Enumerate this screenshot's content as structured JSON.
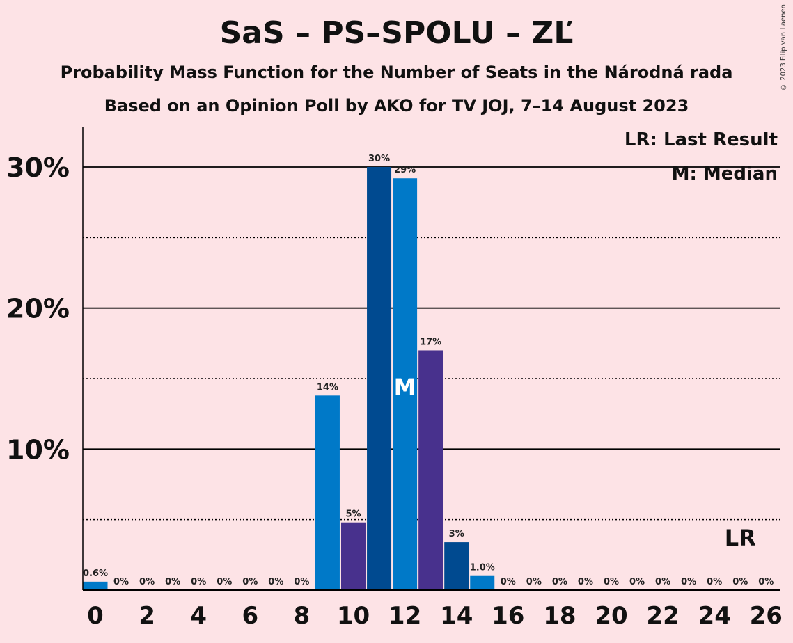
{
  "title": "SaS – PS–SPOLU – ZĽ",
  "subtitle1": "Probability Mass Function for the Number of Seats in the Národná rada",
  "subtitle2": "Based on an Opinion Poll by AKO for TV JOJ, 7–14 August 2023",
  "copyright": "© 2023 Filip van Laenen",
  "legend": {
    "last_result": "LR: Last Result",
    "median": "M: Median"
  },
  "markers": {
    "median_label": "M",
    "median_seat": 12,
    "last_result_label": "LR",
    "last_result_seat": 25
  },
  "colors": {
    "background": "#fde3e6",
    "sas": "#0079c8",
    "ps": "#48318d",
    "spolu": "#004a90"
  },
  "chart_data": {
    "type": "bar",
    "xlim": [
      0,
      26
    ],
    "ylim": [
      0,
      0.32
    ],
    "x_ticks": [
      0,
      2,
      4,
      6,
      8,
      10,
      12,
      14,
      16,
      18,
      20,
      22,
      24,
      26
    ],
    "y_ticks": [
      {
        "value": 0.1,
        "label": "10%"
      },
      {
        "value": 0.2,
        "label": "20%"
      },
      {
        "value": 0.3,
        "label": "30%"
      }
    ],
    "minor_y_gridlines": [
      0.05,
      0.15,
      0.25
    ],
    "bars": [
      {
        "seats": 0,
        "value": 0.006,
        "label": "0.6%",
        "color": "#0079c8"
      },
      {
        "seats": 1,
        "value": 0,
        "label": "0%",
        "color": "#0079c8"
      },
      {
        "seats": 2,
        "value": 0,
        "label": "0%",
        "color": "#0079c8"
      },
      {
        "seats": 3,
        "value": 0,
        "label": "0%",
        "color": "#0079c8"
      },
      {
        "seats": 4,
        "value": 0,
        "label": "0%",
        "color": "#0079c8"
      },
      {
        "seats": 5,
        "value": 0,
        "label": "0%",
        "color": "#0079c8"
      },
      {
        "seats": 6,
        "value": 0,
        "label": "0%",
        "color": "#0079c8"
      },
      {
        "seats": 7,
        "value": 0,
        "label": "0%",
        "color": "#0079c8"
      },
      {
        "seats": 8,
        "value": 0,
        "label": "0%",
        "color": "#0079c8"
      },
      {
        "seats": 9,
        "value": 0.138,
        "label": "14%",
        "color": "#0079c8"
      },
      {
        "seats": 10,
        "value": 0.048,
        "label": "5%",
        "color": "#48318d"
      },
      {
        "seats": 11,
        "value": 0.3,
        "label": "30%",
        "color": "#004a90"
      },
      {
        "seats": 12,
        "value": 0.292,
        "label": "29%",
        "color": "#0079c8"
      },
      {
        "seats": 13,
        "value": 0.17,
        "label": "17%",
        "color": "#48318d"
      },
      {
        "seats": 14,
        "value": 0.034,
        "label": "3%",
        "color": "#004a90"
      },
      {
        "seats": 15,
        "value": 0.01,
        "label": "1.0%",
        "color": "#0079c8"
      },
      {
        "seats": 16,
        "value": 0,
        "label": "0%",
        "color": "#48318d"
      },
      {
        "seats": 17,
        "value": 0,
        "label": "0%",
        "color": "#004a90"
      },
      {
        "seats": 18,
        "value": 0,
        "label": "0%",
        "color": "#0079c8"
      },
      {
        "seats": 19,
        "value": 0,
        "label": "0%",
        "color": "#48318d"
      },
      {
        "seats": 20,
        "value": 0,
        "label": "0%",
        "color": "#004a90"
      },
      {
        "seats": 21,
        "value": 0,
        "label": "0%",
        "color": "#0079c8"
      },
      {
        "seats": 22,
        "value": 0,
        "label": "0%",
        "color": "#48318d"
      },
      {
        "seats": 23,
        "value": 0,
        "label": "0%",
        "color": "#004a90"
      },
      {
        "seats": 24,
        "value": 0,
        "label": "0%",
        "color": "#0079c8"
      },
      {
        "seats": 25,
        "value": 0,
        "label": "0%",
        "color": "#48318d"
      },
      {
        "seats": 26,
        "value": 0,
        "label": "0%",
        "color": "#004a90"
      }
    ]
  }
}
